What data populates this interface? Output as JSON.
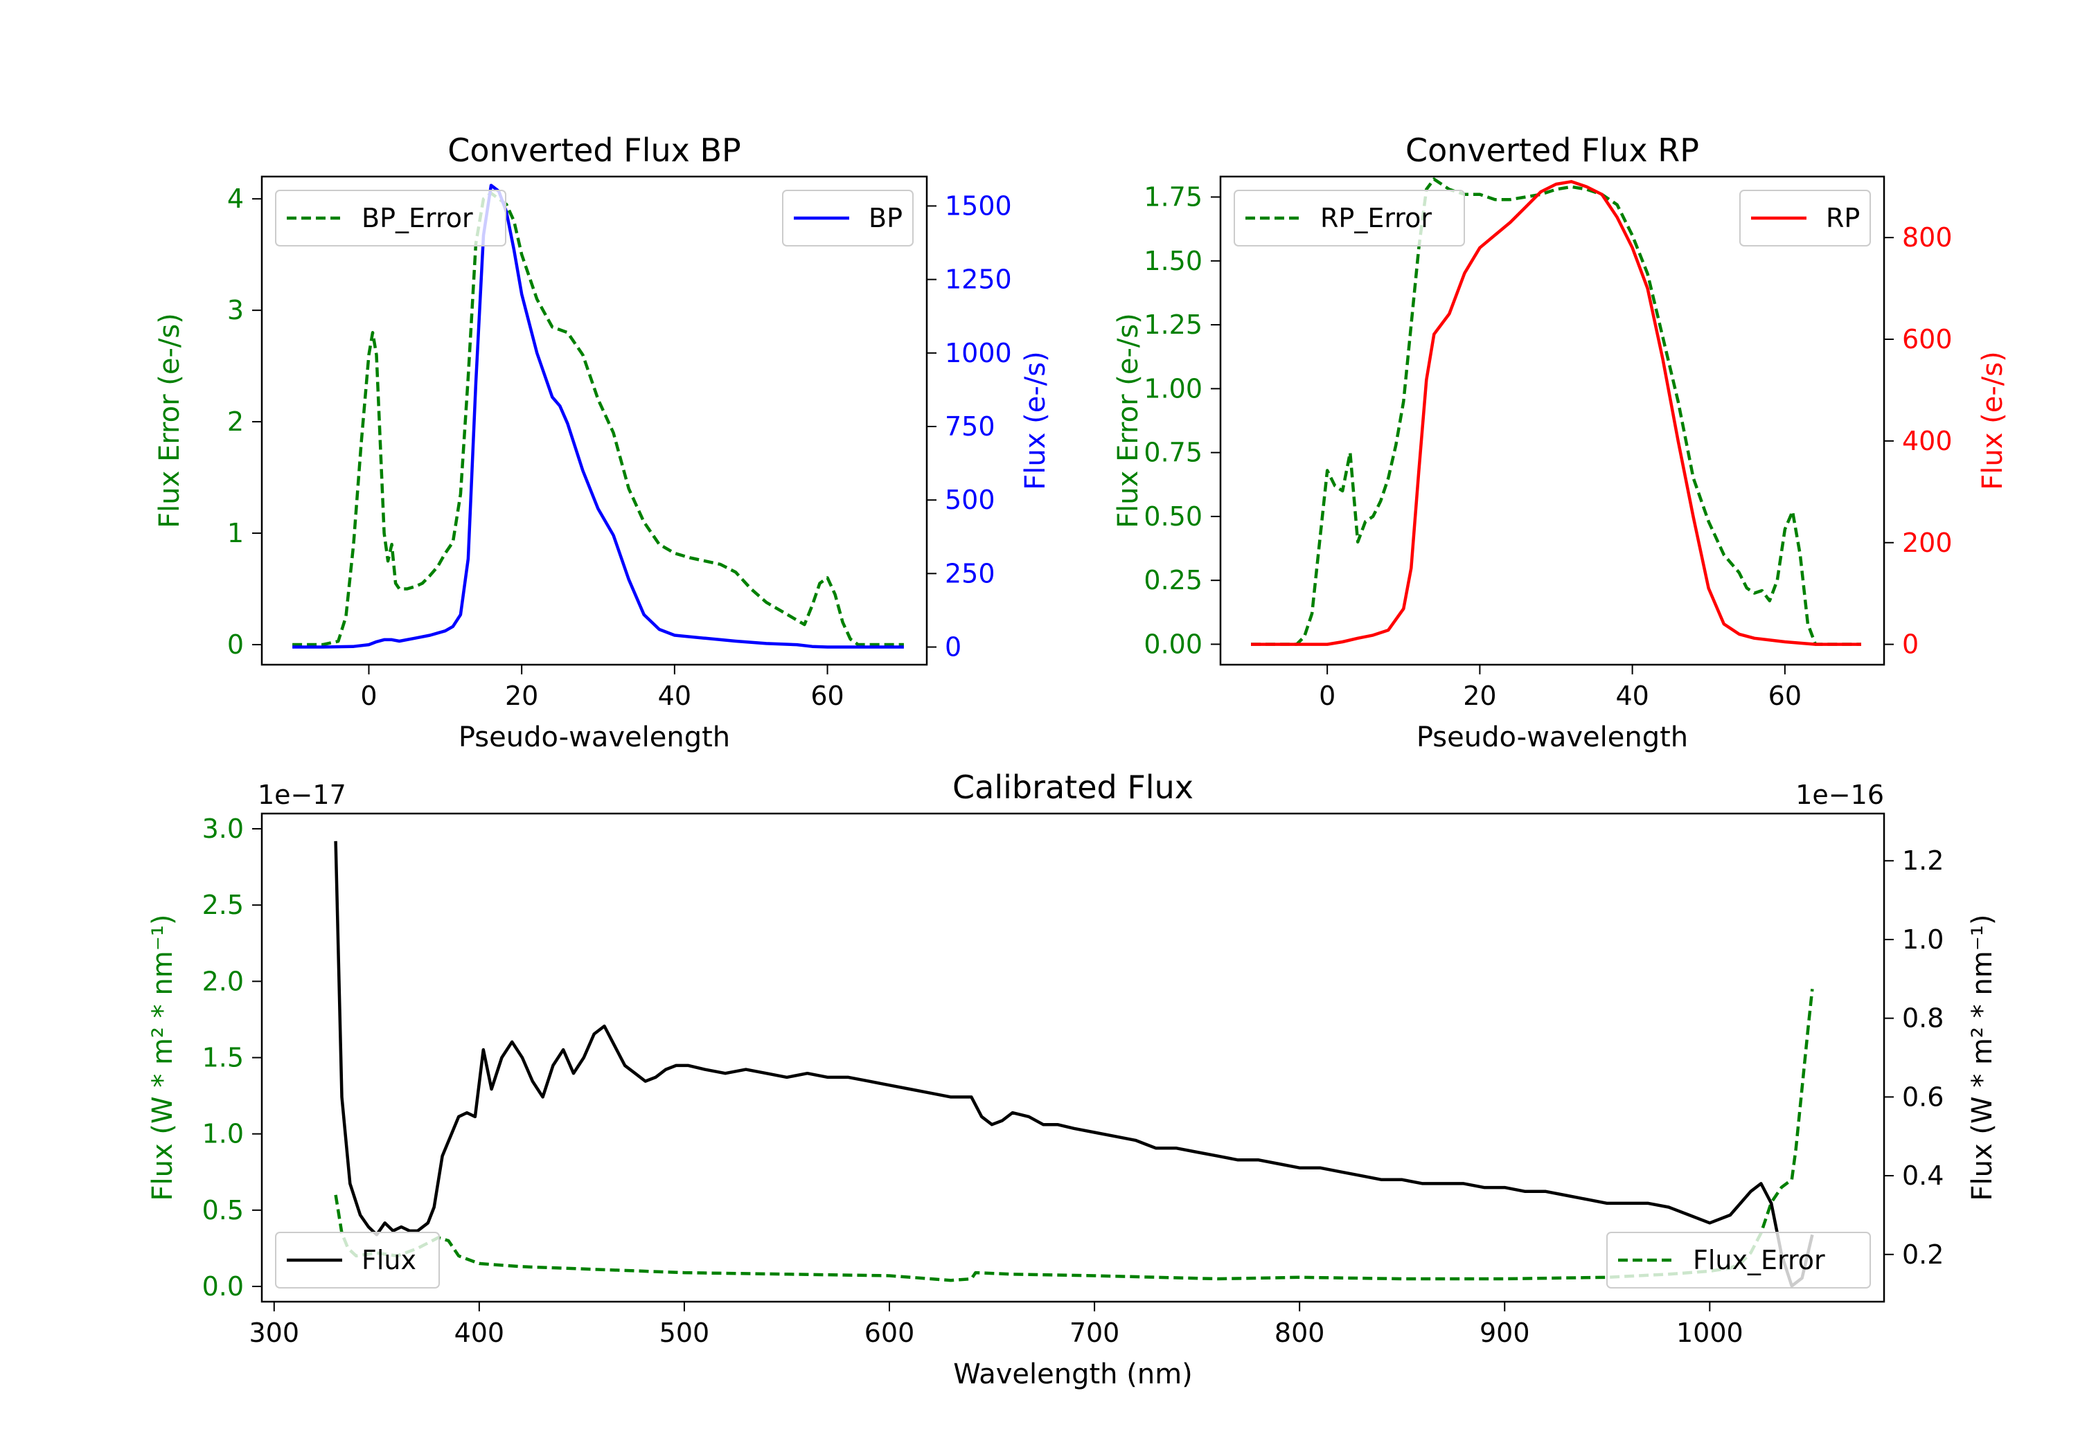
{
  "chart_data": [
    {
      "type": "line",
      "title": "Converted Flux BP",
      "xlabel": "Pseudo-wavelength",
      "ylabel_left": "Flux Error (e-/s)",
      "ylabel_right": "Flux (e-/s)",
      "xlim": [
        -14,
        73
      ],
      "ylim_left": [
        -0.18,
        4.2
      ],
      "ylim_right": [
        -60,
        1600
      ],
      "xticks": [
        "0",
        "20",
        "40",
        "60"
      ],
      "yticks_left": [
        "0",
        "1",
        "2",
        "3",
        "4"
      ],
      "yticks_right": [
        "0",
        "250",
        "500",
        "750",
        "1000",
        "1250",
        "1500"
      ],
      "colors": {
        "left_axis": "#008000",
        "right_axis": "#0000ff"
      },
      "series": [
        {
          "name": "BP_Error",
          "axis": "left",
          "style": "dashed",
          "color": "#008000",
          "x": [
            -10,
            -6,
            -4,
            -3,
            -2,
            -1,
            0,
            0.5,
            1,
            2,
            2.5,
            3,
            3.5,
            4,
            5,
            6,
            7,
            8,
            9,
            10,
            11,
            12,
            13,
            14,
            15,
            16,
            17,
            18,
            19,
            20,
            22,
            24,
            26,
            28,
            30,
            32,
            34,
            36,
            38,
            40,
            42,
            44,
            46,
            48,
            50,
            52,
            54,
            56,
            57,
            58,
            59,
            60,
            61,
            62,
            63,
            64,
            66,
            68,
            70
          ],
          "values": [
            0,
            0,
            0.03,
            0.25,
            0.9,
            1.8,
            2.6,
            2.8,
            2.6,
            1.0,
            0.75,
            0.9,
            0.55,
            0.5,
            0.5,
            0.52,
            0.55,
            0.62,
            0.7,
            0.82,
            0.92,
            1.35,
            2.4,
            3.6,
            4.0,
            4.05,
            4.0,
            3.95,
            3.8,
            3.5,
            3.1,
            2.85,
            2.8,
            2.6,
            2.2,
            1.9,
            1.4,
            1.1,
            0.9,
            0.82,
            0.78,
            0.75,
            0.72,
            0.65,
            0.5,
            0.38,
            0.3,
            0.22,
            0.18,
            0.35,
            0.55,
            0.6,
            0.45,
            0.2,
            0.05,
            0,
            0,
            0,
            0
          ]
        },
        {
          "name": "BP",
          "axis": "right",
          "style": "solid",
          "color": "#0000ff",
          "x": [
            -10,
            -6,
            -2,
            0,
            1,
            2,
            3,
            4,
            6,
            8,
            10,
            11,
            12,
            13,
            14,
            15,
            16,
            17,
            18,
            19,
            20,
            22,
            24,
            25,
            26,
            28,
            30,
            32,
            34,
            36,
            38,
            40,
            44,
            48,
            52,
            56,
            58,
            60,
            64,
            70
          ],
          "values": [
            0,
            0,
            2,
            8,
            18,
            25,
            25,
            20,
            30,
            40,
            55,
            70,
            110,
            300,
            900,
            1400,
            1570,
            1550,
            1480,
            1350,
            1200,
            1000,
            850,
            820,
            760,
            600,
            470,
            380,
            230,
            110,
            60,
            40,
            30,
            20,
            12,
            8,
            2,
            0,
            0,
            0
          ]
        }
      ],
      "legend": [
        {
          "label": "BP_Error",
          "position": "top-left"
        },
        {
          "label": "BP",
          "position": "top-right"
        }
      ]
    },
    {
      "type": "line",
      "title": "Converted Flux RP",
      "xlabel": "Pseudo-wavelength",
      "ylabel_left": "Flux Error (e-/s)",
      "ylabel_right": "Flux (e-/s)",
      "xlim": [
        -14,
        73
      ],
      "ylim_left": [
        -0.08,
        1.83
      ],
      "ylim_right": [
        -40,
        920
      ],
      "xticks": [
        "0",
        "20",
        "40",
        "60"
      ],
      "yticks_left": [
        "0.00",
        "0.25",
        "0.50",
        "0.75",
        "1.00",
        "1.25",
        "1.50",
        "1.75"
      ],
      "yticks_right": [
        "0",
        "200",
        "400",
        "600",
        "800"
      ],
      "colors": {
        "left_axis": "#008000",
        "right_axis": "#ff0000"
      },
      "series": [
        {
          "name": "RP_Error",
          "axis": "left",
          "style": "dashed",
          "color": "#008000",
          "x": [
            -10,
            -4,
            -3,
            -2,
            -1,
            0,
            1,
            2,
            3,
            4,
            5,
            6,
            7,
            8,
            9,
            10,
            11,
            12,
            13,
            14,
            16,
            18,
            20,
            22,
            24,
            26,
            28,
            30,
            32,
            34,
            36,
            38,
            40,
            42,
            44,
            46,
            48,
            50,
            52,
            54,
            55,
            56,
            57,
            58,
            59,
            60,
            61,
            62,
            63,
            64,
            66,
            70
          ],
          "values": [
            0,
            0,
            0.03,
            0.12,
            0.4,
            0.68,
            0.62,
            0.6,
            0.75,
            0.4,
            0.48,
            0.5,
            0.56,
            0.65,
            0.78,
            0.95,
            1.25,
            1.55,
            1.78,
            1.82,
            1.78,
            1.76,
            1.76,
            1.74,
            1.74,
            1.75,
            1.76,
            1.78,
            1.79,
            1.78,
            1.76,
            1.72,
            1.6,
            1.45,
            1.2,
            0.95,
            0.65,
            0.48,
            0.35,
            0.28,
            0.22,
            0.2,
            0.21,
            0.17,
            0.25,
            0.45,
            0.52,
            0.35,
            0.08,
            0,
            0,
            0
          ]
        },
        {
          "name": "RP",
          "axis": "right",
          "style": "solid",
          "color": "#ff0000",
          "x": [
            -10,
            -2,
            0,
            2,
            4,
            6,
            8,
            10,
            11,
            12,
            13,
            14,
            15,
            16,
            18,
            20,
            24,
            26,
            28,
            30,
            32,
            34,
            36,
            38,
            40,
            42,
            44,
            46,
            48,
            50,
            52,
            54,
            56,
            60,
            64,
            70
          ],
          "values": [
            0,
            0,
            0,
            5,
            12,
            18,
            28,
            70,
            150,
            340,
            520,
            610,
            630,
            650,
            730,
            780,
            830,
            860,
            890,
            905,
            910,
            900,
            885,
            840,
            780,
            700,
            560,
            400,
            250,
            110,
            40,
            20,
            12,
            5,
            0,
            0
          ]
        }
      ],
      "legend": [
        {
          "label": "RP_Error",
          "position": "top-left"
        },
        {
          "label": "RP",
          "position": "top-right"
        }
      ]
    },
    {
      "type": "line",
      "title": "Calibrated Flux",
      "xlabel": "Wavelength (nm)",
      "ylabel_left": "Flux (W * m² * nm⁻¹)",
      "ylabel_right": "Flux (W * m² * nm⁻¹)",
      "left_offset_label": "1e−17",
      "right_offset_label": "1e−16",
      "xlim": [
        294,
        1085
      ],
      "ylim_left": [
        -0.1,
        3.1
      ],
      "ylim_right": [
        0.08,
        1.32
      ],
      "xticks": [
        "300",
        "400",
        "500",
        "600",
        "700",
        "800",
        "900",
        "1000"
      ],
      "yticks_left": [
        "0.0",
        "0.5",
        "1.0",
        "1.5",
        "2.0",
        "2.5",
        "3.0"
      ],
      "yticks_right": [
        "0.2",
        "0.4",
        "0.6",
        "0.8",
        "1.0",
        "1.2"
      ],
      "colors": {
        "left_axis": "#008000",
        "right_axis": "#000000"
      },
      "series": [
        {
          "name": "Flux",
          "axis": "right",
          "style": "solid",
          "color": "#000000",
          "x": [
            330,
            333,
            337,
            342,
            346,
            350,
            354,
            358,
            362,
            366,
            370,
            375,
            378,
            382,
            386,
            390,
            394,
            398,
            402,
            406,
            411,
            416,
            421,
            426,
            431,
            436,
            441,
            446,
            451,
            456,
            461,
            466,
            471,
            476,
            481,
            486,
            491,
            496,
            502,
            510,
            520,
            530,
            540,
            550,
            560,
            570,
            580,
            590,
            600,
            610,
            620,
            630,
            640,
            645,
            650,
            655,
            660,
            668,
            675,
            682,
            690,
            700,
            710,
            720,
            730,
            740,
            750,
            760,
            770,
            780,
            790,
            800,
            810,
            820,
            830,
            840,
            850,
            860,
            870,
            880,
            890,
            900,
            910,
            920,
            930,
            940,
            950,
            960,
            970,
            980,
            990,
            1000,
            1010,
            1020,
            1025,
            1030,
            1035,
            1040,
            1045,
            1050
          ],
          "values": [
            1.25,
            0.6,
            0.38,
            0.3,
            0.27,
            0.25,
            0.28,
            0.26,
            0.27,
            0.26,
            0.26,
            0.28,
            0.32,
            0.45,
            0.5,
            0.55,
            0.56,
            0.55,
            0.72,
            0.62,
            0.7,
            0.74,
            0.7,
            0.64,
            0.6,
            0.68,
            0.72,
            0.66,
            0.7,
            0.76,
            0.78,
            0.73,
            0.68,
            0.66,
            0.64,
            0.65,
            0.67,
            0.68,
            0.68,
            0.67,
            0.66,
            0.67,
            0.66,
            0.65,
            0.66,
            0.65,
            0.65,
            0.64,
            0.63,
            0.62,
            0.61,
            0.6,
            0.6,
            0.55,
            0.53,
            0.54,
            0.56,
            0.55,
            0.53,
            0.53,
            0.52,
            0.51,
            0.5,
            0.49,
            0.47,
            0.47,
            0.46,
            0.45,
            0.44,
            0.44,
            0.43,
            0.42,
            0.42,
            0.41,
            0.4,
            0.39,
            0.39,
            0.38,
            0.38,
            0.38,
            0.37,
            0.37,
            0.36,
            0.36,
            0.35,
            0.34,
            0.33,
            0.33,
            0.33,
            0.32,
            0.3,
            0.28,
            0.3,
            0.36,
            0.38,
            0.33,
            0.2,
            0.12,
            0.14,
            0.25
          ]
        },
        {
          "name": "Flux_Error",
          "axis": "left",
          "style": "dashed",
          "color": "#008000",
          "x": [
            330,
            333,
            336,
            340,
            350,
            360,
            370,
            380,
            385,
            390,
            400,
            420,
            440,
            460,
            480,
            500,
            550,
            600,
            630,
            640,
            642,
            660,
            700,
            760,
            800,
            850,
            900,
            950,
            980,
            1000,
            1010,
            1015,
            1020,
            1025,
            1030,
            1035,
            1040,
            1042,
            1045,
            1048,
            1050
          ],
          "values": [
            0.6,
            0.35,
            0.25,
            0.2,
            0.22,
            0.2,
            0.25,
            0.32,
            0.3,
            0.2,
            0.15,
            0.13,
            0.12,
            0.11,
            0.1,
            0.09,
            0.08,
            0.07,
            0.04,
            0.05,
            0.09,
            0.08,
            0.07,
            0.05,
            0.06,
            0.05,
            0.05,
            0.06,
            0.08,
            0.1,
            0.12,
            0.15,
            0.22,
            0.35,
            0.55,
            0.65,
            0.7,
            0.9,
            1.3,
            1.7,
            1.95
          ]
        }
      ],
      "legend": [
        {
          "label": "Flux",
          "position": "bottom-left"
        },
        {
          "label": "Flux_Error",
          "position": "bottom-right"
        }
      ]
    }
  ]
}
